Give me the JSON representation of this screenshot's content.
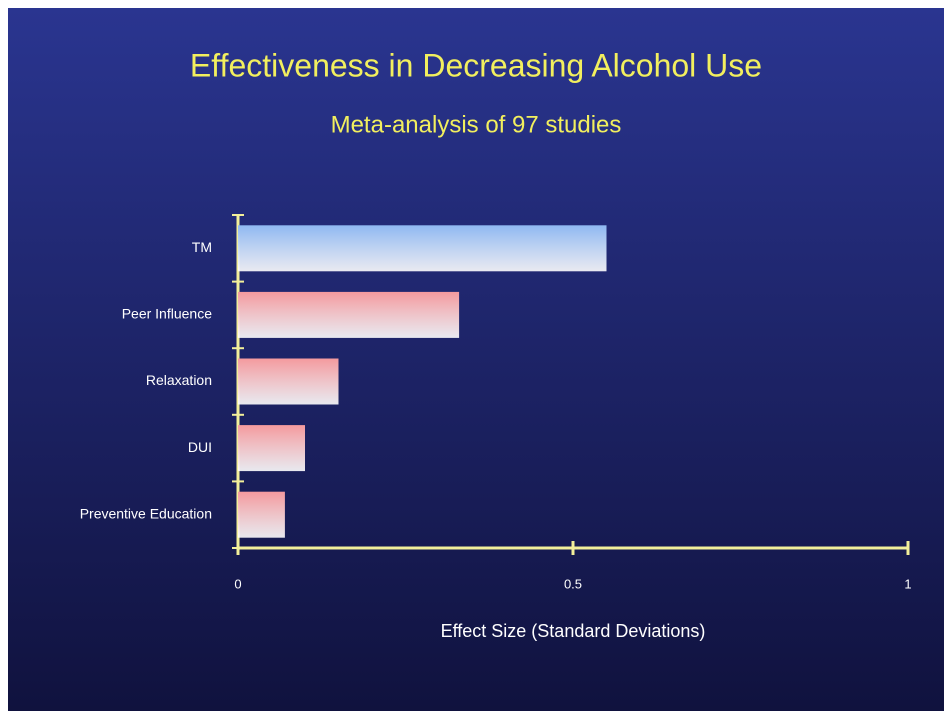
{
  "chart_data": {
    "type": "hbar",
    "title": "Effectiveness in Decreasing Alcohol Use",
    "subtitle": "Meta-analysis of 97 studies",
    "x_label": "Effect Size (Standard Deviations)",
    "categories": [
      "TM",
      "Peer Influence",
      "Relaxation",
      "DUI",
      "Preventive Education"
    ],
    "values": [
      0.55,
      0.33,
      0.15,
      0.1,
      0.07
    ],
    "colors": [
      "#8fb8f2",
      "#f49a9e",
      "#f49a9e",
      "#f49a9e",
      "#f49a9e"
    ],
    "xlim": [
      0,
      1
    ],
    "xticks": [
      0,
      0.5,
      1
    ]
  }
}
